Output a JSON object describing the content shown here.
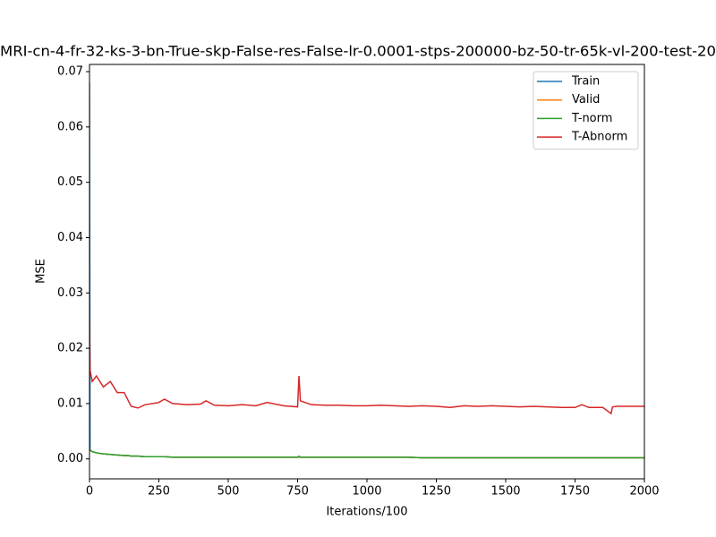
{
  "chart_data": {
    "type": "line",
    "title": "MRI-cn-4-fr-32-ks-3-bn-True-skp-False-res-False-lr-0.0001-stps-200000-bz-50-tr-65k-vl-200-test-20",
    "xlabel": "Iterations/100",
    "ylabel": "MSE",
    "x": [
      0,
      2,
      10,
      25,
      50,
      75,
      100,
      125,
      140,
      150,
      175,
      200,
      250,
      270,
      300,
      350,
      400,
      420,
      450,
      500,
      550,
      600,
      640,
      700,
      750,
      755,
      760,
      800,
      850,
      900,
      950,
      1000,
      1050,
      1100,
      1150,
      1200,
      1250,
      1300,
      1350,
      1400,
      1450,
      1500,
      1550,
      1600,
      1650,
      1700,
      1750,
      1775,
      1800,
      1850,
      1880,
      1885,
      1900,
      1950,
      2000
    ],
    "series": [
      {
        "name": "Train",
        "color": "#1f77b4",
        "values": [
          0.068,
          0.0016,
          0.0013,
          0.0011,
          0.0009,
          0.0008,
          0.0007,
          0.0006,
          0.0006,
          0.0005,
          0.0005,
          0.0004,
          0.0004,
          0.0004,
          0.0003,
          0.0003,
          0.0003,
          0.0003,
          0.0003,
          0.0003,
          0.0003,
          0.0003,
          0.0003,
          0.0003,
          0.0003,
          0.0003,
          0.0003,
          0.0003,
          0.0003,
          0.0003,
          0.0003,
          0.0003,
          0.0003,
          0.0003,
          0.0003,
          0.0002,
          0.0002,
          0.0002,
          0.0002,
          0.0002,
          0.0002,
          0.0002,
          0.0002,
          0.0002,
          0.0002,
          0.0002,
          0.0002,
          0.0002,
          0.0002,
          0.0002,
          0.0002,
          0.0002,
          0.0002,
          0.0002,
          0.0002
        ]
      },
      {
        "name": "Valid",
        "color": "#ff7f0e",
        "values": [
          0.002,
          0.0016,
          0.0013,
          0.0011,
          0.0009,
          0.0008,
          0.0007,
          0.0006,
          0.0006,
          0.0005,
          0.0005,
          0.0004,
          0.0004,
          0.0004,
          0.0003,
          0.0003,
          0.0003,
          0.0003,
          0.0003,
          0.0003,
          0.0003,
          0.0003,
          0.0003,
          0.0003,
          0.0003,
          0.0003,
          0.0003,
          0.0003,
          0.0003,
          0.0003,
          0.0003,
          0.0003,
          0.0003,
          0.0003,
          0.0003,
          0.0002,
          0.0002,
          0.0002,
          0.0002,
          0.0002,
          0.0002,
          0.0002,
          0.0002,
          0.0002,
          0.0002,
          0.0002,
          0.0002,
          0.0002,
          0.0002,
          0.0002,
          0.0002,
          0.0002,
          0.0002,
          0.0002,
          0.0002
        ]
      },
      {
        "name": "T-norm",
        "color": "#2ca02c",
        "values": [
          0.002,
          0.0016,
          0.0013,
          0.0011,
          0.0009,
          0.0008,
          0.0007,
          0.0006,
          0.0006,
          0.0005,
          0.0005,
          0.0004,
          0.0004,
          0.0004,
          0.0003,
          0.0003,
          0.0003,
          0.0003,
          0.0003,
          0.0003,
          0.0003,
          0.0003,
          0.0003,
          0.0003,
          0.0003,
          0.0005,
          0.0003,
          0.0003,
          0.0003,
          0.0003,
          0.0003,
          0.0003,
          0.0003,
          0.0003,
          0.0003,
          0.0002,
          0.0002,
          0.0002,
          0.0002,
          0.0002,
          0.0002,
          0.0002,
          0.0002,
          0.0002,
          0.0002,
          0.0002,
          0.0002,
          0.0002,
          0.0002,
          0.0002,
          0.0002,
          0.0002,
          0.0002,
          0.0002,
          0.0002
        ]
      },
      {
        "name": "T-Abnorm",
        "color": "#d62728",
        "values": [
          0.025,
          0.016,
          0.014,
          0.015,
          0.013,
          0.014,
          0.012,
          0.012,
          0.0105,
          0.0095,
          0.0092,
          0.0098,
          0.0102,
          0.0108,
          0.01,
          0.0098,
          0.0099,
          0.0105,
          0.0097,
          0.0096,
          0.0098,
          0.0096,
          0.0102,
          0.0096,
          0.0094,
          0.015,
          0.0105,
          0.0098,
          0.0097,
          0.0097,
          0.0096,
          0.0096,
          0.0097,
          0.0096,
          0.0095,
          0.0096,
          0.0095,
          0.0093,
          0.0096,
          0.0095,
          0.0096,
          0.0095,
          0.0094,
          0.0095,
          0.0094,
          0.0093,
          0.0093,
          0.0098,
          0.0093,
          0.0093,
          0.0082,
          0.0094,
          0.0095,
          0.0095,
          0.0095
        ]
      }
    ],
    "xlim": [
      0,
      2000
    ],
    "ylim": [
      -0.0036,
      0.0713
    ],
    "xticks": [
      0,
      250,
      500,
      750,
      1000,
      1250,
      1500,
      1750,
      2000
    ],
    "yticks": [
      {
        "value": 0,
        "label": "0.00"
      },
      {
        "value": 0.01,
        "label": "0.01"
      },
      {
        "value": 0.02,
        "label": "0.02"
      },
      {
        "value": 0.03,
        "label": "0.03"
      },
      {
        "value": 0.04,
        "label": "0.04"
      },
      {
        "value": 0.05,
        "label": "0.05"
      },
      {
        "value": 0.06,
        "label": "0.06"
      },
      {
        "value": 0.07,
        "label": "0.07"
      }
    ],
    "legend": "upper right"
  }
}
